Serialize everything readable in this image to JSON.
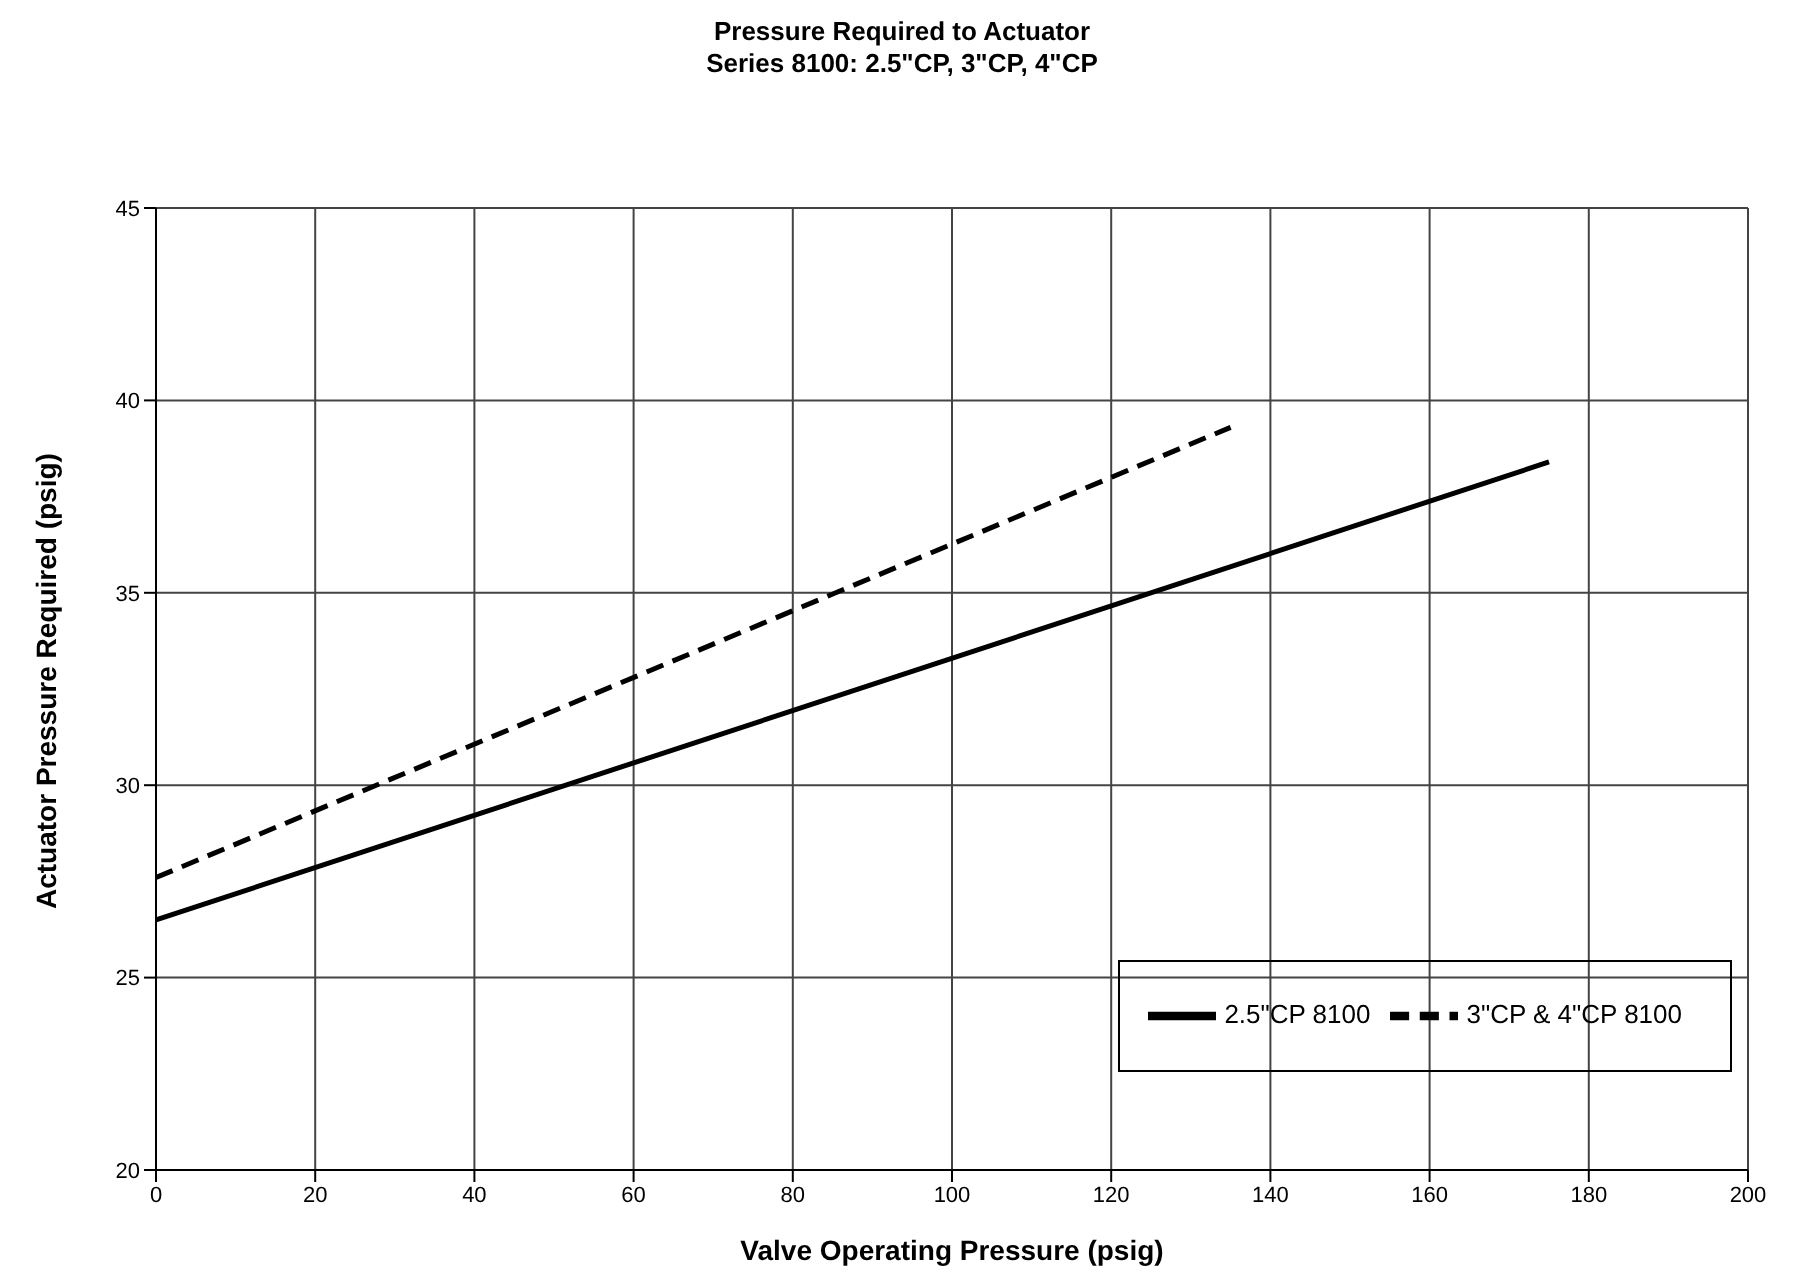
{
  "chart_data": {
    "type": "line",
    "title": "Pressure Required to Actuator",
    "subtitle": "Series 8100: 2.5\"CP, 3\"CP, 4\"CP",
    "xlabel": "Valve Operating Pressure (psig)",
    "ylabel": "Actuator Pressure Required (psig)",
    "series": [
      {
        "name": "2.5\"CP 8100",
        "color": "#000000",
        "line_style": "solid",
        "x": [
          0,
          175
        ],
        "values": [
          26.5,
          38.4
        ]
      },
      {
        "name": "3\"CP & 4\"CP 8100",
        "color": "#000000",
        "line_style": "dashed",
        "x": [
          0,
          135
        ],
        "values": [
          27.6,
          39.3
        ]
      }
    ],
    "xlim": [
      0,
      200
    ],
    "xticks": [
      0,
      20,
      40,
      60,
      80,
      100,
      120,
      140,
      160,
      180,
      200
    ],
    "ylim": [
      20,
      45
    ],
    "yticks": [
      20,
      25,
      30,
      35,
      40,
      45
    ],
    "grid": true,
    "legend": "bottom right",
    "marker": "none"
  }
}
